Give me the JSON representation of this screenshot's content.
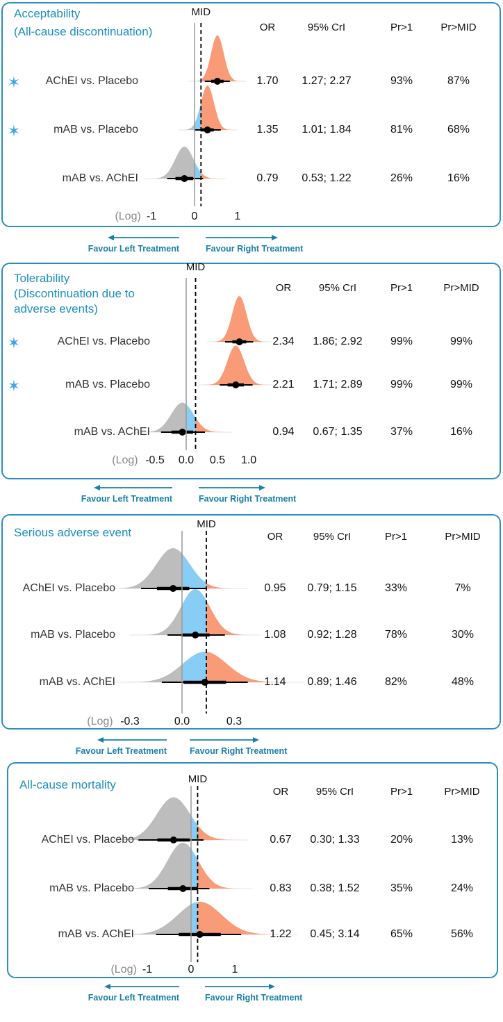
{
  "colors": {
    "border": "#2b8ec0",
    "title": "#1d8ec2",
    "below_zero": "#bdbdbd",
    "zero_to_mid": "#88cdf6",
    "above_mid": "#f89b76",
    "arrow": "#1a7fa8"
  },
  "favour_left": "Favour Left Treatment",
  "favour_right": "Favour Right Treatment",
  "headers": {
    "mid": "MID",
    "or": "OR",
    "cri": "95% CrI",
    "pr1": "Pr>1",
    "prmid": "Pr>MID",
    "log": "(Log)"
  },
  "chart_data": [
    {
      "type": "density-forest",
      "title_lines": [
        "Acceptability",
        "(All-cause discontinuation)"
      ],
      "xscale": "log",
      "mid_log": 0.15,
      "ticks": [
        {
          "v": -1,
          "label": "-1"
        },
        {
          "v": 0,
          "label": "0"
        },
        {
          "v": 1,
          "label": "1"
        }
      ],
      "rows": [
        {
          "label": "AChEI vs. Placebo",
          "star": true,
          "or": "1.70",
          "cri": "1.27; 2.27",
          "or_v": 1.7,
          "lo": 1.27,
          "hi": 2.27,
          "pr1": "93%",
          "prmid": "87%"
        },
        {
          "label": "mAB vs. Placebo",
          "star": true,
          "or": "1.35",
          "cri": "1.01; 1.84",
          "or_v": 1.35,
          "lo": 1.01,
          "hi": 1.84,
          "pr1": "81%",
          "prmid": "68%"
        },
        {
          "label": "mAB vs. AChEI",
          "star": false,
          "or": "0.79",
          "cri": "0.53; 1.22",
          "or_v": 0.79,
          "lo": 0.53,
          "hi": 1.22,
          "pr1": "26%",
          "prmid": "16%"
        }
      ]
    },
    {
      "type": "density-forest",
      "title_lines": [
        "Tolerability",
        "(Discontinuation due to",
        "adverse events)"
      ],
      "xscale": "log",
      "mid_log": 0.15,
      "ticks": [
        {
          "v": -0.5,
          "label": "-0.5"
        },
        {
          "v": 0,
          "label": "0.0"
        },
        {
          "v": 0.5,
          "label": "0.5"
        },
        {
          "v": 1.0,
          "label": "1.0"
        }
      ],
      "rows": [
        {
          "label": "AChEI vs. Placebo",
          "star": true,
          "or": "2.34",
          "cri": "1.86; 2.92",
          "or_v": 2.34,
          "lo": 1.86,
          "hi": 2.92,
          "pr1": "99%",
          "prmid": "99%"
        },
        {
          "label": "mAB vs. Placebo",
          "star": true,
          "or": "2.21",
          "cri": "1.71; 2.89",
          "or_v": 2.21,
          "lo": 1.71,
          "hi": 2.89,
          "pr1": "99%",
          "prmid": "99%"
        },
        {
          "label": "mAB vs. AChEI",
          "star": false,
          "or": "0.94",
          "cri": "0.67; 1.35",
          "or_v": 0.94,
          "lo": 0.67,
          "hi": 1.35,
          "pr1": "37%",
          "prmid": "16%"
        }
      ]
    },
    {
      "type": "density-forest",
      "title_lines": [
        "Serious adverse event"
      ],
      "xscale": "log",
      "mid_log": 0.14,
      "ticks": [
        {
          "v": -0.3,
          "label": "-0.3"
        },
        {
          "v": 0,
          "label": "0.0"
        },
        {
          "v": 0.3,
          "label": "0.3"
        }
      ],
      "rows": [
        {
          "label": "AChEI vs. Placebo",
          "star": false,
          "or": "0.95",
          "cri": "0.79; 1.15",
          "or_v": 0.95,
          "lo": 0.79,
          "hi": 1.15,
          "pr1": "33%",
          "prmid": "7%"
        },
        {
          "label": "mAB vs. Placebo",
          "star": false,
          "or": "1.08",
          "cri": "0.92; 1.28",
          "or_v": 1.08,
          "lo": 0.92,
          "hi": 1.28,
          "pr1": "78%",
          "prmid": "30%"
        },
        {
          "label": "mAB vs. AChEI",
          "star": false,
          "or": "1.14",
          "cri": "0.89; 1.46",
          "or_v": 1.14,
          "lo": 0.89,
          "hi": 1.46,
          "pr1": "82%",
          "prmid": "48%"
        }
      ]
    },
    {
      "type": "density-forest",
      "title_lines": [
        "All-cause mortality"
      ],
      "xscale": "log",
      "mid_log": 0.15,
      "ticks": [
        {
          "v": -1,
          "label": "-1"
        },
        {
          "v": 0,
          "label": "0"
        },
        {
          "v": 1,
          "label": "1"
        }
      ],
      "rows": [
        {
          "label": "AChEI vs. Placebo",
          "star": false,
          "or": "0.67",
          "cri": "0.30; 1.33",
          "or_v": 0.67,
          "lo": 0.3,
          "hi": 1.33,
          "pr1": "20%",
          "prmid": "13%"
        },
        {
          "label": "mAB vs. Placebo",
          "star": false,
          "or": "0.83",
          "cri": "0.38; 1.52",
          "or_v": 0.83,
          "lo": 0.38,
          "hi": 1.52,
          "pr1": "35%",
          "prmid": "24%"
        },
        {
          "label": "mAB vs. AChEI",
          "star": false,
          "or": "1.22",
          "cri": "0.45; 3.14",
          "or_v": 1.22,
          "lo": 0.45,
          "hi": 3.14,
          "pr1": "65%",
          "prmid": "56%"
        }
      ]
    }
  ]
}
